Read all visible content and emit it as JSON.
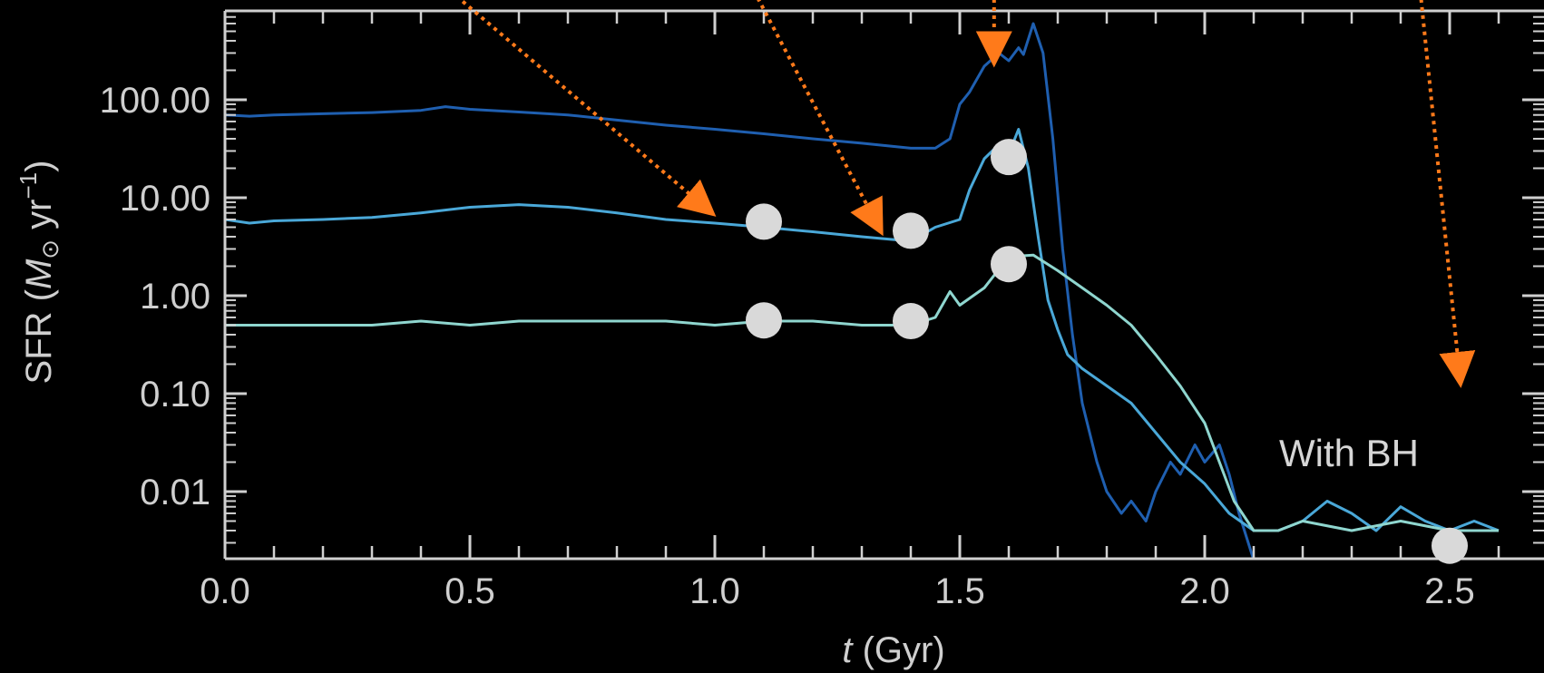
{
  "chart_data": {
    "type": "line",
    "title": "",
    "xlabel_italic": "t",
    "xlabel_rest": " (Gyr)",
    "ylabel_prefix": "SFR (",
    "ylabel_m": "M",
    "ylabel_sun": "⊙",
    "ylabel_units": " yr",
    "ylabel_exp": "−1",
    "ylabel_suffix": ")",
    "xlim": [
      0.0,
      2.6
    ],
    "ylim": [
      0.002,
      1000
    ],
    "y_scale": "log",
    "x_ticks": [
      0.0,
      0.5,
      1.0,
      1.5,
      2.0,
      2.5
    ],
    "x_tick_labels": [
      "0.0",
      "0.5",
      "1.0",
      "1.5",
      "2.0",
      "2.5"
    ],
    "y_ticks": [
      0.01,
      0.1,
      1,
      10,
      100
    ],
    "y_tick_labels": [
      "0.01",
      "0.10",
      "1.00",
      "10.00",
      "100.00"
    ],
    "annotation": "With BH",
    "colors": {
      "background": "#000000",
      "axis": "#d0d0d0",
      "arrow": "#ff7a1a",
      "marker": "#d9d9d9"
    },
    "series": [
      {
        "color": "#1f5fb0",
        "x": [
          0.0,
          0.05,
          0.1,
          0.2,
          0.3,
          0.4,
          0.45,
          0.5,
          0.6,
          0.7,
          0.8,
          0.9,
          1.0,
          1.1,
          1.2,
          1.3,
          1.4,
          1.45,
          1.48,
          1.5,
          1.52,
          1.55,
          1.58,
          1.6,
          1.62,
          1.63,
          1.65,
          1.67,
          1.69,
          1.71,
          1.73,
          1.75,
          1.78,
          1.8,
          1.83,
          1.85,
          1.88,
          1.9,
          1.93,
          1.95,
          1.98,
          2.0,
          2.03,
          2.05,
          2.07,
          2.1
        ],
        "y": [
          70,
          68,
          70,
          72,
          74,
          78,
          85,
          80,
          75,
          70,
          62,
          55,
          50,
          45,
          40,
          36,
          32,
          32,
          40,
          90,
          120,
          220,
          300,
          250,
          340,
          290,
          600,
          300,
          40,
          3,
          0.4,
          0.08,
          0.02,
          0.01,
          0.006,
          0.008,
          0.005,
          0.01,
          0.02,
          0.015,
          0.03,
          0.02,
          0.03,
          0.015,
          0.006,
          0.002
        ]
      },
      {
        "color": "#4aa8d8",
        "x": [
          0.0,
          0.05,
          0.1,
          0.2,
          0.3,
          0.4,
          0.5,
          0.6,
          0.7,
          0.8,
          0.9,
          1.0,
          1.1,
          1.2,
          1.3,
          1.4,
          1.45,
          1.5,
          1.52,
          1.55,
          1.58,
          1.6,
          1.62,
          1.64,
          1.66,
          1.68,
          1.7,
          1.72,
          1.75,
          1.8,
          1.85,
          1.9,
          1.95,
          2.0,
          2.05,
          2.1,
          2.15,
          2.2,
          2.25,
          2.3,
          2.35,
          2.4,
          2.45,
          2.5,
          2.55,
          2.6
        ],
        "y": [
          6,
          5.5,
          5.8,
          6,
          6.3,
          7,
          8,
          8.5,
          8,
          7,
          6,
          5.5,
          5,
          4.5,
          4,
          3.6,
          5,
          6,
          12,
          25,
          35,
          28,
          50,
          20,
          4,
          0.9,
          0.45,
          0.25,
          0.18,
          0.12,
          0.08,
          0.04,
          0.02,
          0.012,
          0.006,
          0.004,
          0.004,
          0.005,
          0.008,
          0.006,
          0.004,
          0.007,
          0.005,
          0.004,
          0.005,
          0.004
        ]
      },
      {
        "color": "#8fd6cf",
        "x": [
          0.0,
          0.1,
          0.2,
          0.3,
          0.4,
          0.5,
          0.6,
          0.7,
          0.8,
          0.9,
          1.0,
          1.1,
          1.2,
          1.3,
          1.4,
          1.45,
          1.48,
          1.5,
          1.55,
          1.6,
          1.65,
          1.7,
          1.75,
          1.8,
          1.85,
          1.9,
          1.95,
          2.0,
          2.03,
          2.06,
          2.1,
          2.15,
          2.2,
          2.3,
          2.4,
          2.5,
          2.6
        ],
        "y": [
          0.5,
          0.5,
          0.5,
          0.5,
          0.55,
          0.5,
          0.55,
          0.55,
          0.55,
          0.55,
          0.5,
          0.55,
          0.55,
          0.5,
          0.5,
          0.6,
          1.1,
          0.8,
          1.2,
          2.5,
          2.6,
          1.8,
          1.2,
          0.8,
          0.5,
          0.25,
          0.12,
          0.05,
          0.02,
          0.008,
          0.004,
          0.004,
          0.005,
          0.004,
          0.005,
          0.004,
          0.004
        ]
      }
    ],
    "markers": [
      {
        "x": 1.1,
        "y": 5.7
      },
      {
        "x": 1.4,
        "y": 4.6
      },
      {
        "x": 1.6,
        "y": 26
      },
      {
        "x": 1.1,
        "y": 0.56
      },
      {
        "x": 1.4,
        "y": 0.55
      },
      {
        "x": 1.6,
        "y": 2.1
      },
      {
        "x": 2.5,
        "y": 0.0028
      }
    ],
    "arrows": [
      {
        "from": [
          0.46,
          1500
        ],
        "to": [
          0.98,
          8
        ]
      },
      {
        "from": [
          1.08,
          1500
        ],
        "to": [
          1.33,
          5.5
        ]
      },
      {
        "from": [
          1.57,
          1500
        ],
        "to": [
          1.57,
          300
        ]
      },
      {
        "from": [
          2.44,
          1500
        ],
        "to": [
          2.52,
          0.16
        ]
      }
    ]
  }
}
